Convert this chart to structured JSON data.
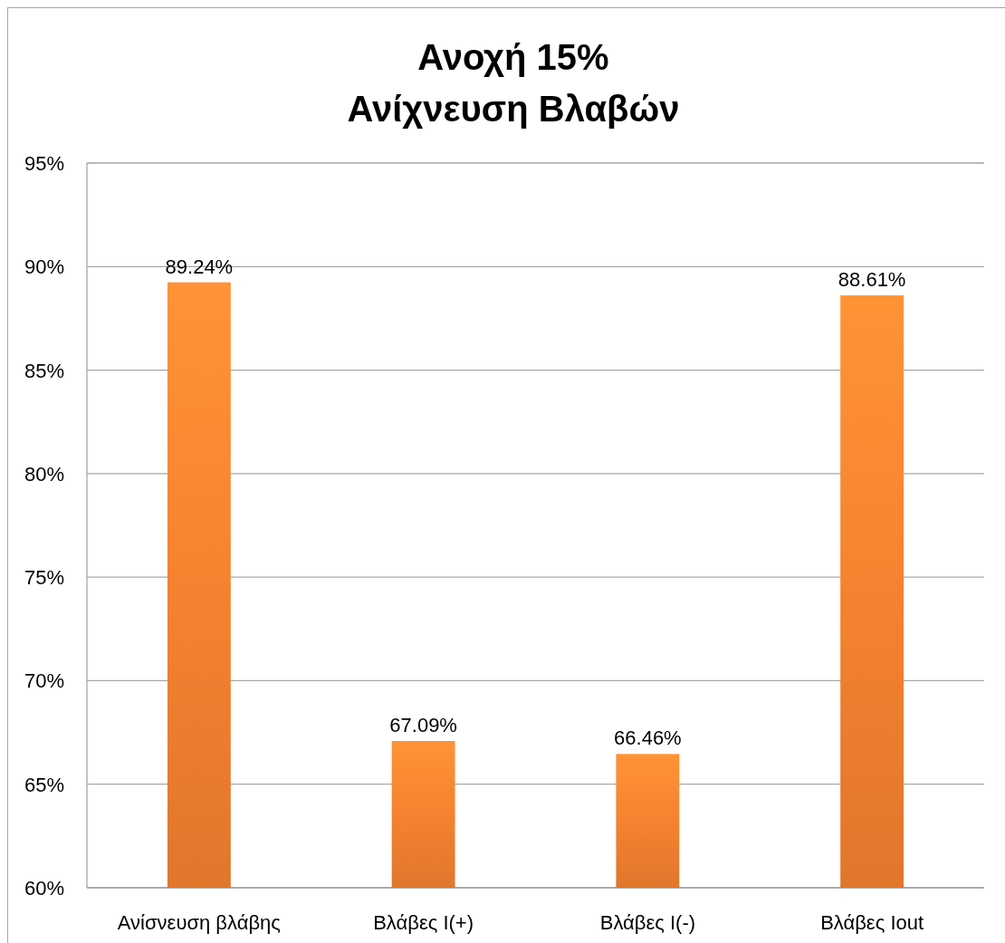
{
  "chart_data": {
    "type": "bar",
    "title": "Ανοχή 15%",
    "subtitle": "Ανίχνευση Βλαβών",
    "categories": [
      "Ανίσνευση βλάβης",
      "Βλάβες I(+)",
      "Βλάβες I(-)",
      "Βλάβες Iout"
    ],
    "values": [
      89.24,
      67.09,
      66.46,
      88.61
    ],
    "color": "#f58230",
    "value_labels": [
      "89.24%",
      "67.09%",
      "66.46%",
      "88.61%"
    ],
    "ylim": [
      60,
      95
    ],
    "yticks": [
      {
        "value": 60,
        "label": "60%"
      },
      {
        "value": 65,
        "label": "65%"
      },
      {
        "value": 70,
        "label": "70%"
      },
      {
        "value": 75,
        "label": "75%"
      },
      {
        "value": 80,
        "label": "80%"
      },
      {
        "value": 85,
        "label": "85%"
      },
      {
        "value": 90,
        "label": "90%"
      },
      {
        "value": 95,
        "label": "95%"
      }
    ],
    "grid": "y"
  }
}
